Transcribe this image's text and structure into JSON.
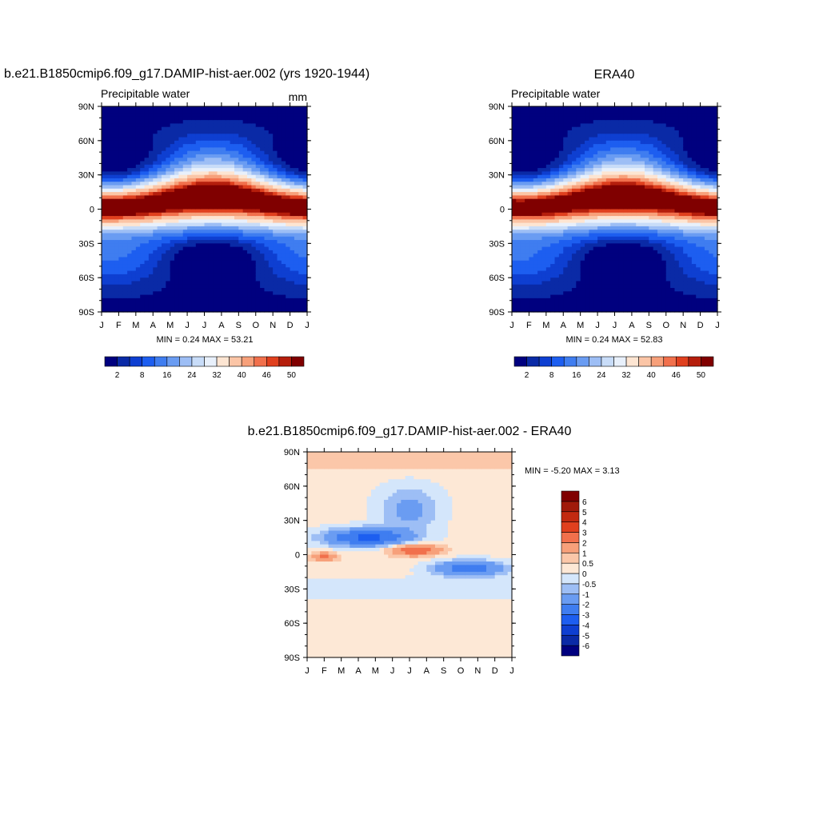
{
  "panels": {
    "model": {
      "title": "b.e21.B1850cmip6.f09_g17.DAMIP-hist-aer.002 (yrs 1920-1944)",
      "variable": "Precipitable water",
      "units": "mm",
      "stats": "MIN =   0.24 MAX =  53.21"
    },
    "obs": {
      "title": "ERA40",
      "variable": "Precipitable water",
      "stats": "MIN =   0.24 MAX =  52.83"
    },
    "diff": {
      "title": "b.e21.B1850cmip6.f09_g17.DAMIP-hist-aer.002 - ERA40",
      "stats": "MIN =  -5.20 MAX =   3.13"
    }
  },
  "chart_data": [
    {
      "type": "heatmap",
      "name": "model",
      "x_tick_labels": [
        "J",
        "F",
        "M",
        "A",
        "M",
        "J",
        "J",
        "A",
        "S",
        "O",
        "N",
        "D",
        "J"
      ],
      "y_tick_labels": [
        "90N",
        "60N",
        "30N",
        "0",
        "30S",
        "60S",
        "90S"
      ],
      "ylim": [
        -90,
        90
      ],
      "field_min": 0.24,
      "field_max": 53.21,
      "colorbar_levels": [
        2,
        5,
        8,
        12,
        16,
        20,
        24,
        28,
        32,
        36,
        40,
        43,
        46,
        48,
        50
      ],
      "colorbar_labels": [
        "2",
        "8",
        "16",
        "24",
        "32",
        "40",
        "46",
        "50"
      ],
      "colorbar_colors": [
        "#00007f",
        "#0a2aa6",
        "#0e3fd1",
        "#1d5ef0",
        "#3f7df0",
        "#6a9cf2",
        "#9dbef5",
        "#c8dcf8",
        "#e8f0fb",
        "#fde5d2",
        "#fbc5a6",
        "#f7a07a",
        "#f1704c",
        "#e0401e",
        "#b51e0c",
        "#800000"
      ],
      "peak_location": "near equator, July-August"
    },
    {
      "type": "heatmap",
      "name": "obs",
      "x_tick_labels": [
        "J",
        "F",
        "M",
        "A",
        "M",
        "J",
        "J",
        "A",
        "S",
        "O",
        "N",
        "D",
        "J"
      ],
      "y_tick_labels": [
        "90N",
        "60N",
        "30N",
        "0",
        "30S",
        "60S",
        "90S"
      ],
      "ylim": [
        -90,
        90
      ],
      "field_min": 0.24,
      "field_max": 52.83,
      "colorbar_levels": [
        2,
        5,
        8,
        12,
        16,
        20,
        24,
        28,
        32,
        36,
        40,
        43,
        46,
        48,
        50
      ],
      "colorbar_labels": [
        "2",
        "8",
        "16",
        "24",
        "32",
        "40",
        "46",
        "50"
      ],
      "colorbar_colors": [
        "#00007f",
        "#0a2aa6",
        "#0e3fd1",
        "#1d5ef0",
        "#3f7df0",
        "#6a9cf2",
        "#9dbef5",
        "#c8dcf8",
        "#e8f0fb",
        "#fde5d2",
        "#fbc5a6",
        "#f7a07a",
        "#f1704c",
        "#e0401e",
        "#b51e0c",
        "#800000"
      ],
      "peak_location": "near equator, July-August"
    },
    {
      "type": "heatmap",
      "name": "diff",
      "x_tick_labels": [
        "J",
        "F",
        "M",
        "A",
        "M",
        "J",
        "J",
        "A",
        "S",
        "O",
        "N",
        "D",
        "J"
      ],
      "y_tick_labels": [
        "90N",
        "60N",
        "30N",
        "0",
        "30S",
        "60S",
        "90S"
      ],
      "ylim": [
        -90,
        90
      ],
      "field_min": -5.2,
      "field_max": 3.13,
      "colorbar_levels": [
        -6,
        -5,
        -4,
        -3,
        -2,
        -1,
        -0.5,
        0,
        0.5,
        1,
        2,
        3,
        4,
        5,
        6
      ],
      "colorbar_labels": [
        "-6",
        "-5",
        "-4",
        "-3",
        "-2",
        "-1",
        "-0.5",
        "0",
        "0.5",
        "1",
        "2",
        "3",
        "4",
        "5",
        "6"
      ],
      "colorbar_colors": [
        "#00007f",
        "#0a2aa6",
        "#0e3fd1",
        "#1d5ef0",
        "#3f7df0",
        "#6a9cf2",
        "#9dbef5",
        "#d4e6fb",
        "#fde8d6",
        "#fbc7a9",
        "#f7a07a",
        "#f1704c",
        "#e0401e",
        "#c22a10",
        "#a01a0a",
        "#800000"
      ]
    }
  ]
}
